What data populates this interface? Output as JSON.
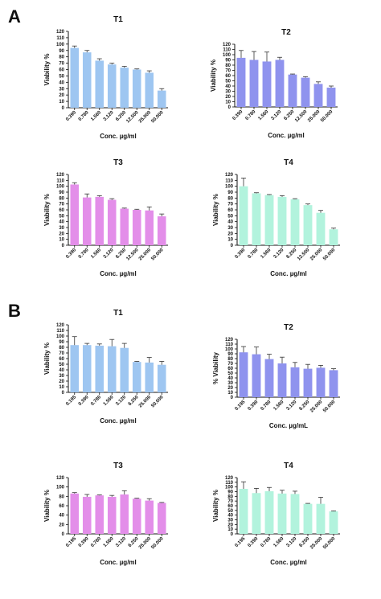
{
  "panels": [
    {
      "label": "A"
    },
    {
      "label": "B"
    }
  ],
  "chart_data": [
    {
      "panel": "A",
      "type": "bar",
      "title": "T1",
      "xlabel": "Conc. µg/ml",
      "ylabel": "Viability %",
      "ylim": [
        0,
        120
      ],
      "yticks": [
        0,
        10,
        20,
        30,
        40,
        50,
        60,
        70,
        80,
        90,
        100,
        110,
        120
      ],
      "categories": [
        "0.390",
        "0.780",
        "1.560",
        "3.120",
        "6.250",
        "12.500",
        "25.000",
        "50.000"
      ],
      "values": [
        94,
        87,
        74,
        68,
        63,
        60,
        55,
        27
      ],
      "errors": [
        3,
        3,
        3,
        2,
        2,
        1,
        3,
        3
      ],
      "color": "#9ec6f1"
    },
    {
      "panel": "A",
      "type": "bar",
      "title": "T2",
      "xlabel": "Conc. µg/ml",
      "ylabel": "Viability %",
      "ylim": [
        0,
        120
      ],
      "yticks": [
        0,
        10,
        20,
        30,
        40,
        50,
        60,
        70,
        80,
        90,
        100,
        110,
        120
      ],
      "categories": [
        "0.390",
        "0.780",
        "1.560",
        "3.120",
        "6.250",
        "12.500",
        "25.000",
        "50.000"
      ],
      "values": [
        94,
        90,
        87,
        90,
        62,
        56,
        44,
        37
      ],
      "errors": [
        14,
        16,
        18,
        5,
        1,
        2,
        4,
        3
      ],
      "color": "#8f93ee"
    },
    {
      "panel": "A",
      "type": "bar",
      "title": "T3",
      "xlabel": "Conc. µg/ml",
      "ylabel": "Viability %",
      "ylim": [
        0,
        120
      ],
      "yticks": [
        0,
        10,
        20,
        30,
        40,
        50,
        60,
        70,
        80,
        90,
        100,
        110,
        120
      ],
      "categories": [
        "0.390",
        "0.780",
        "1.560",
        "3.120",
        "6.250",
        "12.500",
        "25.000",
        "50.000"
      ],
      "values": [
        103,
        81,
        82,
        77,
        62,
        60,
        59,
        49
      ],
      "errors": [
        3,
        6,
        2,
        2,
        1,
        1,
        6,
        4
      ],
      "color": "#e38ee9"
    },
    {
      "panel": "A",
      "type": "bar",
      "title": "T4",
      "xlabel": "Conc. µg/ml",
      "ylabel": "Viability %",
      "ylim": [
        0,
        120
      ],
      "yticks": [
        0,
        10,
        20,
        30,
        40,
        50,
        60,
        70,
        80,
        90,
        100,
        110,
        120
      ],
      "categories": [
        "0.390",
        "0.780",
        "1.560",
        "3.120",
        "6.250",
        "12.500",
        "25.000",
        "50.000"
      ],
      "values": [
        100,
        88,
        85,
        82,
        78,
        68,
        55,
        27
      ],
      "errors": [
        14,
        1,
        1,
        2,
        1,
        2,
        4,
        2
      ],
      "color": "#b2f3dd"
    },
    {
      "panel": "B",
      "type": "bar",
      "title": "T1",
      "xlabel": "Conc. µg/ml",
      "ylabel": "Viability %",
      "ylim": [
        0,
        120
      ],
      "yticks": [
        0,
        10,
        20,
        30,
        40,
        50,
        60,
        70,
        80,
        90,
        100,
        110,
        120
      ],
      "categories": [
        "0.195",
        "0.390",
        "0.780",
        "1.560",
        "3.120",
        "6.250",
        "25.000",
        "50.000"
      ],
      "values": [
        84,
        84,
        83,
        82,
        79,
        54,
        53,
        49
      ],
      "errors": [
        15,
        3,
        3,
        12,
        8,
        1,
        9,
        6
      ],
      "color": "#9ec6f1"
    },
    {
      "panel": "B",
      "type": "bar",
      "title": "T2",
      "xlabel": "Conc. µg/mL",
      "ylabel": "% Viability",
      "ylim": [
        0,
        120
      ],
      "yticks": [
        0,
        10,
        20,
        30,
        40,
        50,
        60,
        70,
        80,
        90,
        100,
        110,
        120
      ],
      "categories": [
        "0.195",
        "0.390",
        "0.780",
        "1.560",
        "3.120",
        "6.250",
        "25.000",
        "50.000"
      ],
      "values": [
        93,
        89,
        79,
        70,
        62,
        59,
        61,
        56
      ],
      "errors": [
        12,
        15,
        10,
        13,
        10,
        9,
        5,
        3
      ],
      "color": "#8f93ee"
    },
    {
      "panel": "B",
      "type": "bar",
      "title": "T3",
      "xlabel": "Conc. µg/ml",
      "ylabel": "Viability %",
      "ylim": [
        0,
        120
      ],
      "yticks": [
        0,
        20,
        40,
        60,
        80,
        100,
        120
      ],
      "categories": [
        "0.195",
        "0.390",
        "0.780",
        "1.560",
        "3.120",
        "6.250",
        "25.000",
        "50.000"
      ],
      "values": [
        86,
        79,
        82,
        79,
        84,
        75,
        71,
        66
      ],
      "errors": [
        2,
        5,
        1,
        3,
        8,
        1,
        4,
        1
      ],
      "color": "#e38ee9"
    },
    {
      "panel": "B",
      "type": "bar",
      "title": "T4",
      "xlabel": "Conc. µg/ml",
      "ylabel": "Viability %",
      "ylim": [
        0,
        120
      ],
      "yticks": [
        0,
        10,
        20,
        30,
        40,
        50,
        60,
        70,
        80,
        90,
        100,
        110,
        120
      ],
      "categories": [
        "0.195",
        "0.390",
        "0.780",
        "1.560",
        "3.120",
        "6.250",
        "25.000",
        "50.000"
      ],
      "values": [
        96,
        87,
        91,
        86,
        85,
        64,
        64,
        48
      ],
      "errors": [
        15,
        10,
        8,
        7,
        6,
        1,
        14,
        1
      ],
      "color": "#b2f3dd"
    }
  ]
}
